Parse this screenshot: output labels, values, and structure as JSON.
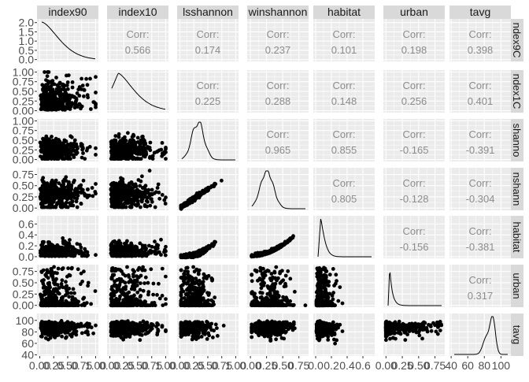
{
  "chart_data": {
    "type": "scatter-matrix",
    "variables": [
      "index90",
      "index10",
      "lsshannon",
      "winshannon",
      "habitat",
      "urban",
      "tavg"
    ],
    "row_strip_labels": [
      "ndex9C",
      "ndex1C",
      "shanno",
      "nshann",
      "habitat",
      "urban",
      "tavg"
    ],
    "corr_label": "Corr:",
    "correlations": [
      {
        "row": 0,
        "col": 1,
        "value": "0.566"
      },
      {
        "row": 0,
        "col": 2,
        "value": "0.174"
      },
      {
        "row": 0,
        "col": 3,
        "value": "0.237"
      },
      {
        "row": 0,
        "col": 4,
        "value": "0.101"
      },
      {
        "row": 0,
        "col": 5,
        "value": "0.198"
      },
      {
        "row": 0,
        "col": 6,
        "value": "0.398"
      },
      {
        "row": 1,
        "col": 2,
        "value": "0.225"
      },
      {
        "row": 1,
        "col": 3,
        "value": "0.288"
      },
      {
        "row": 1,
        "col": 4,
        "value": "0.148"
      },
      {
        "row": 1,
        "col": 5,
        "value": "0.256"
      },
      {
        "row": 1,
        "col": 6,
        "value": "0.401"
      },
      {
        "row": 2,
        "col": 3,
        "value": "0.965"
      },
      {
        "row": 2,
        "col": 4,
        "value": "0.855"
      },
      {
        "row": 2,
        "col": 5,
        "value": "-0.165"
      },
      {
        "row": 2,
        "col": 6,
        "value": "-0.391"
      },
      {
        "row": 3,
        "col": 4,
        "value": "0.805"
      },
      {
        "row": 3,
        "col": 5,
        "value": "-0.128"
      },
      {
        "row": 3,
        "col": 6,
        "value": "-0.304"
      },
      {
        "row": 4,
        "col": 5,
        "value": "-0.156"
      },
      {
        "row": 4,
        "col": 6,
        "value": "-0.381"
      },
      {
        "row": 5,
        "col": 6,
        "value": "0.317"
      }
    ],
    "y_axis_ticks": [
      [
        "2.0",
        "1.5",
        "1.0",
        "0.5",
        "0.0"
      ],
      [
        "1.00",
        "0.75",
        "0.50",
        "0.25",
        "0.00"
      ],
      [
        "1.00",
        "0.75",
        "0.50",
        "0.25",
        "0.00"
      ],
      [
        "0.75",
        "0.50",
        "0.25",
        "0.00"
      ],
      [
        "0.6",
        "0.4",
        "0.2",
        "0.0"
      ],
      [
        "0.75",
        "0.50",
        "0.25",
        "0.00"
      ],
      [
        "100",
        "80",
        "60",
        "40"
      ]
    ],
    "y_axis_tick_values": [
      [
        2.0,
        1.5,
        1.0,
        0.5,
        0.0
      ],
      [
        1.0,
        0.75,
        0.5,
        0.25,
        0.0
      ],
      [
        1.0,
        0.75,
        0.5,
        0.25,
        0.0
      ],
      [
        0.75,
        0.5,
        0.25,
        0.0
      ],
      [
        0.6,
        0.4,
        0.2,
        0.0
      ],
      [
        0.75,
        0.5,
        0.25,
        0.0
      ],
      [
        100,
        80,
        60,
        40
      ]
    ],
    "y_ranges": [
      [
        -0.1,
        2.2
      ],
      [
        -0.05,
        1.05
      ],
      [
        -0.05,
        1.05
      ],
      [
        -0.05,
        0.9
      ],
      [
        -0.03,
        0.75
      ],
      [
        -0.04,
        0.9
      ],
      [
        38,
        112
      ]
    ],
    "x_axis_ticks": [
      [
        "0.00",
        "0.25",
        "0.50",
        "0.75",
        "1.00"
      ],
      [
        "0.00",
        "0.25",
        "0.50",
        "0.75",
        "1.00"
      ],
      [
        "0.00",
        "0.25",
        "0.50",
        "0.75",
        "1.00"
      ],
      [
        "0.00",
        "0.25",
        "0.50",
        "0.75"
      ],
      [
        "0.0",
        "0.2",
        "0.4",
        "0.6"
      ],
      [
        "0.00",
        "0.25",
        "0.50",
        "0.75"
      ],
      [
        "40",
        "60",
        "80",
        "100"
      ]
    ],
    "x_axis_tick_values": [
      [
        0,
        0.25,
        0.5,
        0.75,
        1.0
      ],
      [
        0,
        0.25,
        0.5,
        0.75,
        1.0
      ],
      [
        0,
        0.25,
        0.5,
        0.75,
        1.0
      ],
      [
        0,
        0.25,
        0.5,
        0.75
      ],
      [
        0,
        0.2,
        0.4,
        0.6
      ],
      [
        0,
        0.25,
        0.5,
        0.75
      ],
      [
        40,
        60,
        80,
        100
      ]
    ],
    "x_ranges": [
      [
        -0.05,
        1.05
      ],
      [
        -0.05,
        1.05
      ],
      [
        -0.05,
        1.05
      ],
      [
        -0.05,
        0.9
      ],
      [
        -0.03,
        0.75
      ],
      [
        -0.04,
        0.9
      ],
      [
        38,
        112
      ]
    ],
    "colors": {
      "panel_bg": "#ebebeb",
      "grid": "#ffffff",
      "strip_bg": "#d9d9d9",
      "strip_text": "#1a1a1a",
      "points": "#000000",
      "corr_text": "#8c8c8c",
      "tick_text": "#4d4d4d"
    }
  }
}
